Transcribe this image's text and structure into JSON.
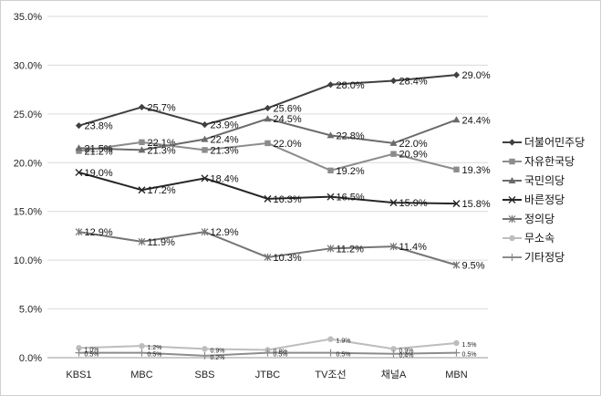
{
  "chart_data": {
    "type": "line",
    "categories": [
      "KBS1",
      "MBC",
      "SBS",
      "JTBC",
      "TV조선",
      "채널A",
      "MBN"
    ],
    "ylim": [
      0,
      35
    ],
    "y_ticks": [
      "0.0%",
      "5.0%",
      "10.0%",
      "15.0%",
      "20.0%",
      "25.0%",
      "30.0%",
      "35.0%"
    ],
    "grid": "horizontal",
    "legend_position": "right",
    "series": [
      {
        "name": "더불어민주당",
        "color": "#404040",
        "marker": "diamond",
        "values": [
          23.8,
          25.7,
          23.9,
          25.6,
          28.0,
          28.4,
          29.0
        ],
        "labels": [
          "23.8%",
          "25.7%",
          "23.9%",
          "25.6%",
          "28.0%",
          "28.4%",
          "29.0%"
        ]
      },
      {
        "name": "자유한국당",
        "color": "#8c8c8c",
        "marker": "square",
        "values": [
          21.2,
          22.1,
          21.3,
          22.0,
          19.2,
          20.9,
          19.3
        ],
        "labels": [
          "21.2%",
          "22.1%",
          "21.3%",
          "22.0%",
          "19.2%",
          "20.9%",
          "19.3%"
        ]
      },
      {
        "name": "국민의당",
        "color": "#6b6b6b",
        "marker": "triangle",
        "values": [
          21.5,
          21.3,
          22.4,
          24.5,
          22.8,
          22.0,
          24.4
        ],
        "labels": [
          "21.5%",
          "21.3%",
          "22.4%",
          "24.5%",
          "22.8%",
          "22.0%",
          "24.4%"
        ]
      },
      {
        "name": "바른정당",
        "color": "#262626",
        "marker": "x",
        "values": [
          19.0,
          17.2,
          18.4,
          16.3,
          16.5,
          15.9,
          15.8
        ],
        "labels": [
          "19.0%",
          "17.2%",
          "18.4%",
          "16.3%",
          "16.5%",
          "15.9%",
          "15.8%"
        ]
      },
      {
        "name": "정의당",
        "color": "#757575",
        "marker": "asterisk",
        "values": [
          12.9,
          11.9,
          12.9,
          10.3,
          11.2,
          11.4,
          9.5
        ],
        "labels": [
          "12.9%",
          "11.9%",
          "12.9%",
          "10.3%",
          "11.2%",
          "11.4%",
          "9.5%"
        ]
      },
      {
        "name": "무소속",
        "color": "#bdbdbd",
        "marker": "circle",
        "values": [
          1.0,
          1.2,
          0.9,
          0.8,
          1.9,
          0.9,
          1.5
        ],
        "labels": [
          "1.0%",
          "1.2%",
          "0.9%",
          "0.8%",
          "1.9%",
          "0.9%",
          "1.5%"
        ]
      },
      {
        "name": "기타정당",
        "color": "#8c8c8c",
        "marker": "plus",
        "values": [
          0.5,
          0.5,
          0.2,
          0.5,
          0.5,
          0.4,
          0.5
        ],
        "labels": [
          "0.5%",
          "0.5%",
          "0.2%",
          "0.5%",
          "0.5%",
          "0.4%",
          "0.5%"
        ]
      }
    ]
  }
}
